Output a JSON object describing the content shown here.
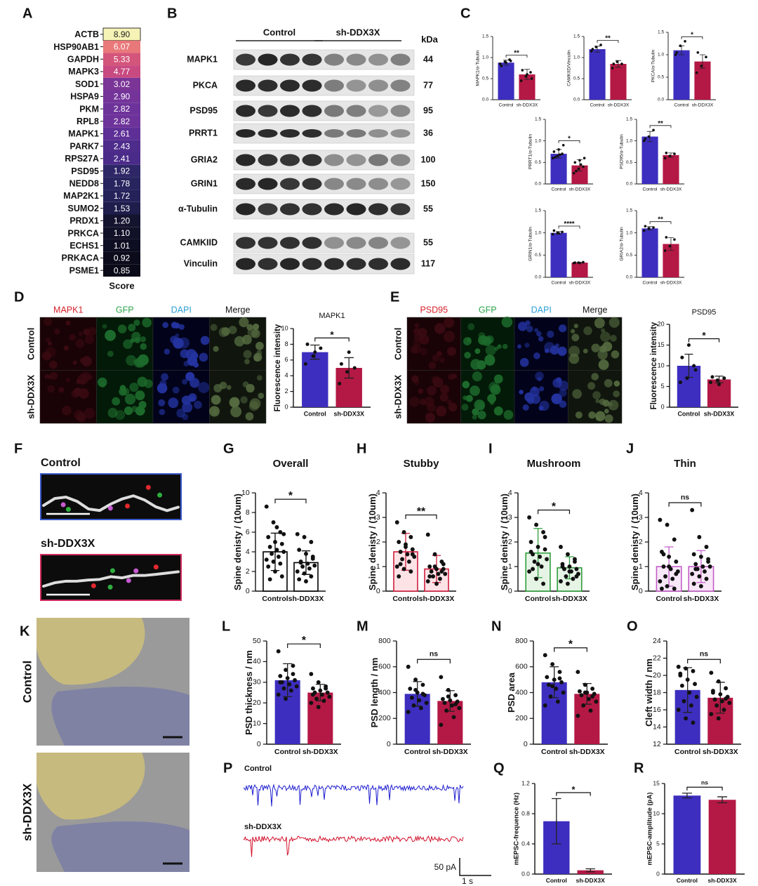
{
  "chart_data": [
    {
      "type": "heatmap",
      "letter": "A",
      "xlabel": "Score",
      "categories": [
        "ACTB",
        "HSP90AB1",
        "GAPDH",
        "MAPK3",
        "SOD1",
        "HSPA9",
        "PKM",
        "RPL8",
        "MAPK1",
        "PARK7",
        "RPS27A",
        "PSD95",
        "NEDD8",
        "MAP2K1",
        "SUMO2",
        "PRDX1",
        "PRKCA",
        "ECHS1",
        "PRKACA",
        "PSME1"
      ],
      "values": [
        8.9,
        6.07,
        5.33,
        4.77,
        3.02,
        2.9,
        2.82,
        2.82,
        2.61,
        2.43,
        2.41,
        1.92,
        1.78,
        1.72,
        1.53,
        1.2,
        1.1,
        1.01,
        0.92,
        0.85
      ],
      "value_labels": [
        "8.90",
        "6.07",
        "5.33",
        "4.77",
        "3.02",
        "2.90",
        "2.82",
        "2.82",
        "2.61",
        "2.43",
        "2.41",
        "1.92",
        "1.78",
        "1.72",
        "1.53",
        "1.20",
        "1.10",
        "1.01",
        "0.92",
        "0.85"
      ],
      "colors": [
        "#f6f3b6",
        "#e9787a",
        "#d4557b",
        "#c84a80",
        "#7a3596",
        "#74349a",
        "#6e339a",
        "#6e339a",
        "#5e2f97",
        "#4d2c8c",
        "#4b2b8a",
        "#2e2767",
        "#28245e",
        "#25225a",
        "#1e1d4b",
        "#14142f",
        "#111128",
        "#0e0e22",
        "#0b0b1c",
        "#0a0a18"
      ]
    },
    {
      "type": "bar",
      "letter": "C",
      "ylabel": "MAPK1/α-Tubulin",
      "categories": [
        "Control",
        "sh-DDX3X"
      ],
      "values": [
        0.88,
        0.6
      ],
      "errors": [
        0.06,
        0.12
      ],
      "points": [
        [
          0.85,
          0.9,
          0.95,
          0.8,
          0.88,
          0.92
        ],
        [
          0.45,
          0.55,
          0.65,
          0.7,
          0.6,
          0.5
        ]
      ],
      "colors": [
        "#3d2ebf",
        "#b41845"
      ],
      "significance": "**",
      "ylim": [
        0,
        1.5
      ],
      "yticks": [
        {
          "value": 0,
          "label": "0.0"
        },
        0.5,
        {
          "value": 1,
          "label": "1.0"
        },
        1.5
      ]
    },
    {
      "type": "bar",
      "ylabel": "CAMKIID/Vinculin",
      "categories": [
        "Control",
        "sh-DDX3X"
      ],
      "values": [
        1.2,
        0.85
      ],
      "errors": [
        0.07,
        0.08
      ],
      "points": [
        [
          1.15,
          1.25,
          1.3,
          1.2
        ],
        [
          0.75,
          0.9,
          0.85,
          0.85
        ]
      ],
      "colors": [
        "#3d2ebf",
        "#b41845"
      ],
      "significance": "**",
      "ylim": [
        0,
        1.5
      ],
      "yticks": [
        {
          "value": 0,
          "label": "0.0"
        },
        0.5,
        {
          "value": 1,
          "label": "1.0"
        },
        1.5
      ]
    },
    {
      "type": "bar",
      "ylabel": "PKCA/α-Tubulin",
      "categories": [
        "Control",
        "sh-DDX3X"
      ],
      "values": [
        1.1,
        0.85
      ],
      "errors": [
        0.1,
        0.15
      ],
      "points": [
        [
          1.0,
          1.2,
          1.3,
          1.05
        ],
        [
          0.6,
          0.75,
          0.95,
          1.05
        ]
      ],
      "colors": [
        "#3d2ebf",
        "#b41845"
      ],
      "significance": "*",
      "ylim": [
        0,
        1.5
      ],
      "yticks": [
        {
          "value": 0,
          "label": "0.0"
        },
        0.5,
        {
          "value": 1,
          "label": "1.0"
        },
        1.5
      ]
    },
    {
      "type": "bar",
      "ylabel": "PRRT1/α-Tubulin",
      "categories": [
        "Control",
        "sh-DDX3X"
      ],
      "values": [
        0.7,
        0.43
      ],
      "errors": [
        0.1,
        0.13
      ],
      "points": [
        [
          0.6,
          0.65,
          0.7,
          0.75,
          0.8,
          0.9,
          0.62,
          0.68
        ],
        [
          0.25,
          0.35,
          0.4,
          0.5,
          0.55,
          0.6,
          0.3,
          0.45
        ]
      ],
      "colors": [
        "#3d2ebf",
        "#b41845"
      ],
      "significance": "*",
      "ylim": [
        0,
        1.5
      ],
      "yticks": [
        {
          "value": 0,
          "label": "0.0"
        },
        0.5,
        {
          "value": 1,
          "label": "1.0"
        },
        1.5
      ]
    },
    {
      "type": "bar",
      "ylabel": "PSD95/α-Tubulin",
      "categories": [
        "Control",
        "sh-DDX3X"
      ],
      "values": [
        1.1,
        0.67
      ],
      "errors": [
        0.12,
        0.05
      ],
      "points": [
        [
          1.0,
          1.1,
          1.25,
          1.05
        ],
        [
          0.6,
          0.65,
          0.7,
          0.72
        ]
      ],
      "colors": [
        "#3d2ebf",
        "#b41845"
      ],
      "significance": "**",
      "ylim": [
        0,
        1.5
      ],
      "yticks": [
        {
          "value": 0,
          "label": "0.0"
        },
        0.5,
        {
          "value": 1,
          "label": "1.0"
        },
        1.5
      ]
    },
    {
      "type": "bar",
      "ylabel": "GRIN1/α-Tubulin",
      "categories": [
        "Control",
        "sh-DDX3X"
      ],
      "values": [
        1.0,
        0.33
      ],
      "errors": [
        0.03,
        0.01
      ],
      "points": [
        [
          0.97,
          1.0,
          1.02,
          1.05,
          0.99
        ],
        [
          0.32,
          0.33,
          0.34,
          0.33,
          0.32
        ]
      ],
      "colors": [
        "#3d2ebf",
        "#b41845"
      ],
      "significance": "****",
      "ylim": [
        0,
        1.5
      ],
      "yticks": [
        {
          "value": 0,
          "label": "0.0"
        },
        0.5,
        {
          "value": 1,
          "label": "1.0"
        },
        1.5
      ]
    },
    {
      "type": "bar",
      "ylabel": "GRIA2/α-Tubulin",
      "categories": [
        "Control",
        "sh-DDX3X"
      ],
      "values": [
        1.1,
        0.75
      ],
      "errors": [
        0.04,
        0.14
      ],
      "points": [
        [
          1.05,
          1.1,
          1.12,
          1.15
        ],
        [
          0.6,
          0.7,
          0.85,
          0.9
        ]
      ],
      "colors": [
        "#3d2ebf",
        "#b41845"
      ],
      "significance": "**",
      "ylim": [
        0,
        1.5
      ],
      "yticks": [
        {
          "value": 0,
          "label": "0.0"
        },
        0.5,
        {
          "value": 1,
          "label": "1.0"
        },
        1.5
      ]
    },
    {
      "type": "bar",
      "title": "MAPK1",
      "ylabel": "Fluorescence intensity",
      "categories": [
        "Control",
        "sh-DDX3X"
      ],
      "values": [
        7.0,
        5.0
      ],
      "errors": [
        0.9,
        1.3
      ],
      "points": [
        [
          5.5,
          6.5,
          7.5,
          8.0,
          7.0
        ],
        [
          3.0,
          4.5,
          5.0,
          5.5,
          7.0
        ]
      ],
      "colors": [
        "#3d2ebf",
        "#b41845"
      ],
      "significance": "*",
      "ylim": [
        0,
        10
      ],
      "yticks": [
        0,
        2,
        4,
        6,
        8,
        10
      ]
    },
    {
      "type": "bar",
      "title": "PSD95",
      "ylabel": "Fluorescence intensity",
      "categories": [
        "Control",
        "sh-DDX3X"
      ],
      "values": [
        10.0,
        6.7
      ],
      "errors": [
        2.8,
        0.8
      ],
      "points": [
        [
          6,
          7,
          10,
          12,
          15,
          9
        ],
        [
          6,
          6.5,
          7,
          7.3,
          5.5
        ]
      ],
      "colors": [
        "#3d2ebf",
        "#b41845"
      ],
      "significance": "*",
      "ylim": [
        0,
        20
      ],
      "yticks": [
        0,
        5,
        10,
        15,
        20
      ]
    },
    {
      "type": "bar",
      "letter": "G",
      "title": "Overall",
      "ylabel": "Spine denisty / (10um)",
      "categories": [
        "Control",
        "sh-DDX3X"
      ],
      "values": [
        4.0,
        2.9
      ],
      "errors": [
        1.9,
        1.2
      ],
      "points": [
        [
          8.6,
          7.0,
          6.0,
          5.5,
          5.0,
          4.8,
          4.5,
          4.2,
          4.0,
          3.8,
          3.5,
          3.2,
          3.0,
          2.8,
          2.5,
          2.0,
          1.5,
          1.2,
          6.5,
          5.8
        ],
        [
          5.8,
          5.5,
          5.0,
          4.2,
          3.8,
          3.5,
          3.0,
          2.8,
          2.6,
          2.5,
          2.3,
          2.0,
          1.8,
          1.5,
          1.2,
          1.0,
          3.3,
          2.9
        ]
      ],
      "colors": [
        "#ffffff",
        "#ffffff"
      ],
      "edge_color": "#000000",
      "significance": "*",
      "ylim": [
        0,
        10
      ],
      "yticks": [
        0,
        2,
        4,
        6,
        8,
        10
      ]
    },
    {
      "type": "bar",
      "letter": "H",
      "title": "Stubby",
      "ylabel": "Spine denisty / (10um)",
      "categories": [
        "Control",
        "sh-DDX3X"
      ],
      "values": [
        1.6,
        0.9
      ],
      "errors": [
        0.75,
        0.55
      ],
      "points": [
        [
          2.8,
          2.4,
          2.2,
          2.0,
          1.9,
          1.7,
          1.6,
          1.5,
          1.4,
          1.3,
          1.2,
          1.0,
          0.9,
          0.8,
          0.6,
          1.8,
          1.5,
          1.1
        ],
        [
          2.3,
          1.5,
          1.2,
          1.0,
          0.9,
          0.9,
          0.8,
          0.7,
          0.7,
          0.6,
          0.5,
          0.4,
          1.0,
          0.8,
          0.6,
          0.3,
          1.1
        ]
      ],
      "colors": [
        "#fde3e6",
        "#fde3e6"
      ],
      "edge_color": "#d01c3c",
      "significance": "**",
      "ylim": [
        0,
        4
      ],
      "yticks": [
        0,
        1,
        2,
        3,
        4
      ]
    },
    {
      "type": "bar",
      "letter": "I",
      "title": "Mushroom",
      "ylabel": "Spine denisty / (10um)",
      "categories": [
        "Control",
        "sh-DDX3X"
      ],
      "values": [
        1.55,
        0.95
      ],
      "errors": [
        1.0,
        0.45
      ],
      "points": [
        [
          3.0,
          2.7,
          2.4,
          2.0,
          1.8,
          1.7,
          1.5,
          1.4,
          1.3,
          1.2,
          1.0,
          0.8,
          0.5,
          0.3,
          1.6,
          1.1,
          2.2,
          0.9
        ],
        [
          1.8,
          1.5,
          1.3,
          1.1,
          1.0,
          0.9,
          0.9,
          0.8,
          0.7,
          0.6,
          0.5,
          0.4,
          0.3,
          1.2,
          1.0,
          0.8,
          0.6
        ]
      ],
      "colors": [
        "#e6f4e6",
        "#e6f4e6"
      ],
      "edge_color": "#2e9e3b",
      "significance": "*",
      "ylim": [
        0,
        4
      ],
      "yticks": [
        0,
        1,
        2,
        3,
        4
      ]
    },
    {
      "type": "bar",
      "letter": "J",
      "title": "Thin",
      "ylabel": "Spine denisty / (10um)",
      "categories": [
        "Control",
        "sh-DDX3X"
      ],
      "values": [
        1.0,
        1.0
      ],
      "errors": [
        0.8,
        0.65
      ],
      "points": [
        [
          2.9,
          2.7,
          2.1,
          1.6,
          1.4,
          1.2,
          1.0,
          0.9,
          0.8,
          0.6,
          0.5,
          0.4,
          0.2,
          0.1,
          0.1,
          1.0,
          0.7,
          1.5
        ],
        [
          3.3,
          2.2,
          1.8,
          1.5,
          1.4,
          1.2,
          1.1,
          1.0,
          1.0,
          0.9,
          0.8,
          0.7,
          0.6,
          0.5,
          0.3,
          0.2,
          1.3,
          0.9
        ]
      ],
      "colors": [
        "#f7e7f7",
        "#f7e7f7"
      ],
      "edge_color": "#c45ec8",
      "significance": "ns",
      "ylim": [
        0,
        4
      ],
      "yticks": [
        0,
        1,
        2,
        3,
        4
      ]
    },
    {
      "type": "bar",
      "letter": "L",
      "ylabel": "PSD thickness / nm",
      "categories": [
        "Control",
        "sh-DDX3X"
      ],
      "values": [
        31,
        25
      ],
      "errors": [
        8,
        4
      ],
      "points": [
        [
          45,
          36,
          34,
          33,
          32,
          31,
          30,
          29,
          28,
          27,
          26,
          24,
          22,
          38,
          30
        ],
        [
          34,
          30,
          28,
          27,
          26,
          25,
          25,
          24,
          23,
          22,
          21,
          20,
          18,
          27,
          24
        ]
      ],
      "colors": [
        "#3d2ebf",
        "#b41845"
      ],
      "significance": "*",
      "ylim": [
        0,
        50
      ],
      "yticks": [
        0,
        10,
        20,
        30,
        40,
        50
      ]
    },
    {
      "type": "bar",
      "letter": "M",
      "ylabel": "PSD length / nm",
      "categories": [
        "Control",
        "sh-DDX3X"
      ],
      "values": [
        390,
        335
      ],
      "errors": [
        95,
        80
      ],
      "points": [
        [
          600,
          500,
          460,
          430,
          400,
          380,
          360,
          340,
          320,
          300,
          280,
          250,
          420,
          390
        ],
        [
          520,
          420,
          380,
          350,
          340,
          330,
          320,
          300,
          280,
          260,
          210,
          150,
          370,
          310
        ]
      ],
      "colors": [
        "#3d2ebf",
        "#b41845"
      ],
      "significance": "ns",
      "ylim": [
        0,
        800
      ],
      "yticks": [
        0,
        200,
        400,
        600,
        800
      ]
    },
    {
      "type": "bar",
      "letter": "N",
      "ylabel": "PSD area",
      "categories": [
        "Control",
        "sh-DDX3X"
      ],
      "values": [
        480,
        390
      ],
      "errors": [
        120,
        80
      ],
      "points": [
        [
          690,
          620,
          560,
          520,
          500,
          480,
          460,
          430,
          400,
          370,
          330,
          300,
          450,
          510
        ],
        [
          560,
          460,
          430,
          410,
          400,
          390,
          380,
          350,
          330,
          300,
          260,
          220,
          400,
          370
        ]
      ],
      "colors": [
        "#3d2ebf",
        "#b41845"
      ],
      "significance": "*",
      "ylim": [
        0,
        800
      ],
      "yticks": [
        0,
        200,
        400,
        600,
        800
      ]
    },
    {
      "type": "bar",
      "letter": "O",
      "ylabel": "Cleft width / nm",
      "categories": [
        "Control",
        "sh-DDX3X"
      ],
      "values": [
        18.3,
        17.4
      ],
      "errors": [
        2.6,
        1.8
      ],
      "points": [
        [
          21.0,
          20.8,
          20.5,
          20.0,
          19.5,
          19.0,
          18.8,
          18.0,
          17.5,
          17.0,
          16.5,
          16.0,
          15.0,
          14.5,
          20.2
        ],
        [
          20.3,
          19.3,
          18.5,
          18.0,
          17.8,
          17.5,
          17.2,
          17.0,
          16.8,
          16.5,
          16.0,
          15.5,
          15.0,
          17.3,
          18.2
        ]
      ],
      "colors": [
        "#3d2ebf",
        "#b41845"
      ],
      "significance": "ns",
      "ylim": [
        12,
        24
      ],
      "yticks": [
        12,
        14,
        16,
        18,
        20,
        22,
        24
      ]
    },
    {
      "type": "bar",
      "letter": "Q",
      "ylabel": "mEPSC-frequence (Hz)",
      "categories": [
        "Control",
        "sh-DDX3X"
      ],
      "values": [
        0.7,
        0.05
      ],
      "errors": [
        0.3,
        0.02
      ],
      "colors": [
        "#3d2ebf",
        "#b41845"
      ],
      "significance": "*",
      "ylim": [
        0,
        1.2
      ],
      "yticks": [
        {
          "value": 0,
          "label": "0.0"
        },
        0.4,
        0.8,
        1.2
      ]
    },
    {
      "type": "bar",
      "letter": "R",
      "ylabel": "mEPSC-amplitude (pA)",
      "categories": [
        "Control",
        "sh-DDX3X"
      ],
      "values": [
        13.0,
        12.3
      ],
      "errors": [
        0.4,
        0.5
      ],
      "colors": [
        "#3d2ebf",
        "#b41845"
      ],
      "significance": "ns",
      "ylim": [
        0,
        15
      ],
      "yticks": [
        0,
        5,
        10,
        15
      ]
    }
  ],
  "figure": {
    "B": {
      "letter": "B",
      "groups": [
        "Control",
        "sh-DDX3X"
      ],
      "unit": "kDa",
      "rows": [
        {
          "label": "MAPK1",
          "kda": 44
        },
        {
          "label": "PKCA",
          "kda": 77
        },
        {
          "label": "PSD95",
          "kda": 95
        },
        {
          "label": "PRRT1",
          "kda": 36
        },
        {
          "label": "GRIA2",
          "kda": 100
        },
        {
          "label": "GRIN1",
          "kda": 150
        },
        {
          "label": "α-Tubulin",
          "kda": 55
        },
        {
          "label": "CAMKIID",
          "kda": 55
        },
        {
          "label": "Vinculin",
          "kda": 117
        }
      ]
    },
    "D": {
      "letter": "D",
      "channels": [
        "MAPK1",
        "GFP",
        "DAPI",
        "Merge"
      ],
      "rows": [
        "Control",
        "sh-DDX3X"
      ]
    },
    "E": {
      "letter": "E",
      "channels": [
        "PSD95",
        "GFP",
        "DAPI",
        "Merge"
      ],
      "rows": [
        "Control",
        "sh-DDX3X"
      ]
    },
    "F": {
      "letter": "F",
      "rows": [
        "Control",
        "sh-DDX3X"
      ]
    },
    "K": {
      "letter": "K",
      "rows": [
        "Control",
        "sh-DDX3X"
      ]
    },
    "P": {
      "letter": "P",
      "traces": [
        "Control",
        "sh-DDX3X"
      ],
      "scale_y": "50 pA",
      "scale_x": "1 s"
    }
  }
}
